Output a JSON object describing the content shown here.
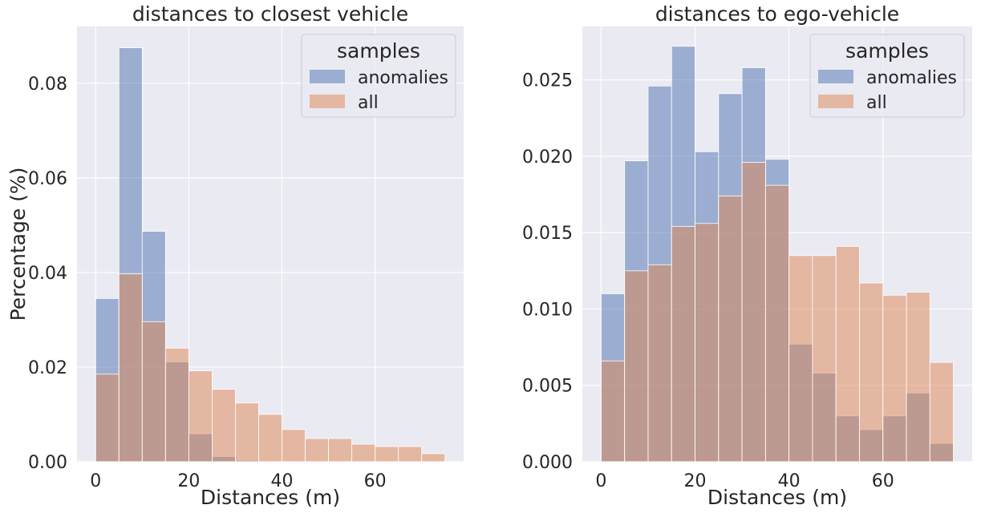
{
  "chart_data": [
    {
      "type": "bar",
      "title": "distances to closest vehicle",
      "xlabel": "Distances (m)",
      "ylabel": "Percentage (%)",
      "xlim": [
        -4,
        79
      ],
      "ylim": [
        0,
        0.092
      ],
      "xticks": [
        0,
        20,
        40,
        60
      ],
      "xtick_labels": [
        "0",
        "20",
        "40",
        "60"
      ],
      "yticks": [
        0,
        0.02,
        0.04,
        0.06,
        0.08
      ],
      "ytick_labels": [
        "0.00",
        "0.02",
        "0.04",
        "0.06",
        "0.08"
      ],
      "grid": true,
      "legend": {
        "title": "samples",
        "placement": "top-right"
      },
      "bin_edges": [
        0,
        5,
        10,
        15,
        20,
        25,
        30,
        35,
        40,
        45,
        50,
        55,
        60,
        65,
        70,
        75
      ],
      "series": [
        {
          "name": "anomalies",
          "color": "#4c72b0",
          "values": [
            0.0345,
            0.0875,
            0.0487,
            0.0211,
            0.0059,
            0.0011,
            0.0003,
            0,
            0,
            0,
            0,
            0,
            0,
            0,
            0
          ]
        },
        {
          "name": "all",
          "color": "#dd8452",
          "values": [
            0.0185,
            0.0397,
            0.0296,
            0.024,
            0.0192,
            0.0153,
            0.0124,
            0.01,
            0.0068,
            0.0049,
            0.0049,
            0.0037,
            0.0032,
            0.0032,
            0.0017
          ]
        }
      ]
    },
    {
      "type": "bar",
      "title": "distances to ego-vehicle",
      "xlabel": "Distances (m)",
      "ylabel": "",
      "xlim": [
        -4,
        79
      ],
      "ylim": [
        0,
        0.0285
      ],
      "xticks": [
        0,
        20,
        40,
        60
      ],
      "xtick_labels": [
        "0",
        "20",
        "40",
        "60"
      ],
      "yticks": [
        0,
        0.005,
        0.01,
        0.015,
        0.02,
        0.025
      ],
      "ytick_labels": [
        "0.000",
        "0.005",
        "0.010",
        "0.015",
        "0.020",
        "0.025"
      ],
      "grid": true,
      "legend": {
        "title": "samples",
        "placement": "top-right"
      },
      "bin_edges": [
        0,
        5,
        10,
        15,
        20,
        25,
        30,
        35,
        40,
        45,
        50,
        55,
        60,
        65,
        70,
        75
      ],
      "series": [
        {
          "name": "anomalies",
          "color": "#4c72b0",
          "values": [
            0.011,
            0.0197,
            0.0246,
            0.0272,
            0.0203,
            0.0241,
            0.0258,
            0.0198,
            0.0077,
            0.0058,
            0.003,
            0.0021,
            0.003,
            0.0045,
            0.0012
          ]
        },
        {
          "name": "all",
          "color": "#dd8452",
          "values": [
            0.0066,
            0.0125,
            0.0129,
            0.0154,
            0.0156,
            0.0174,
            0.0196,
            0.0181,
            0.0135,
            0.0135,
            0.0141,
            0.0117,
            0.0109,
            0.0111,
            0.0065
          ]
        }
      ]
    }
  ]
}
